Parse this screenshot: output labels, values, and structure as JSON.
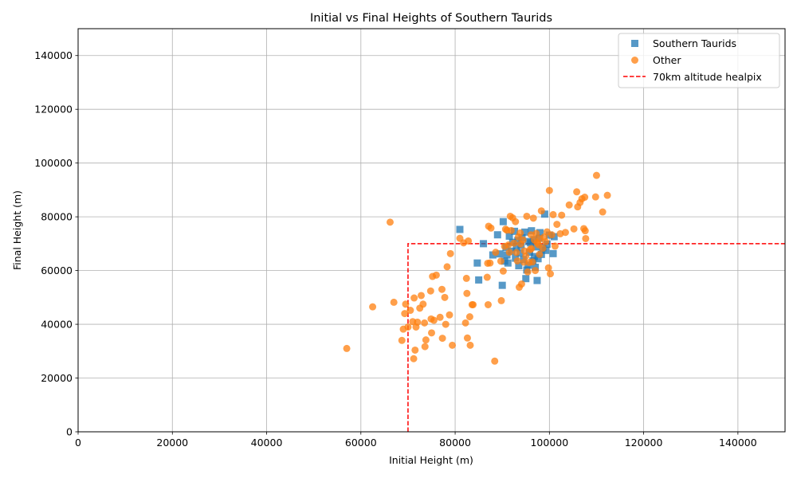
{
  "chart_data": {
    "type": "scatter",
    "title": "Initial vs Final Heights of Southern Taurids",
    "xlabel": "Initial Height (m)",
    "ylabel": "Final Height (m)",
    "xlim": [
      0,
      150000
    ],
    "ylim": [
      0,
      150000
    ],
    "xticks": [
      "0",
      "20000",
      "40000",
      "60000",
      "80000",
      "100000",
      "120000",
      "140000"
    ],
    "yticks": [
      "0",
      "20000",
      "40000",
      "60000",
      "80000",
      "100000",
      "120000",
      "140000"
    ],
    "grid": true,
    "legend_position": "top-right",
    "series": [
      {
        "name": "Southern Taurids",
        "marker": "square",
        "color": "#1f77b4",
        "points": [
          [
            81000,
            75300
          ],
          [
            86000,
            70000
          ],
          [
            85000,
            56500
          ],
          [
            84700,
            62800
          ],
          [
            88000,
            65800
          ],
          [
            89000,
            73300
          ],
          [
            89500,
            66200
          ],
          [
            90200,
            78200
          ],
          [
            90000,
            54500
          ],
          [
            90500,
            63500
          ],
          [
            91000,
            65800
          ],
          [
            91200,
            62800
          ],
          [
            91500,
            72800
          ],
          [
            92000,
            67200
          ],
          [
            92200,
            70500
          ],
          [
            92800,
            64600
          ],
          [
            93000,
            68500
          ],
          [
            93300,
            71200
          ],
          [
            93500,
            61800
          ],
          [
            93800,
            66600
          ],
          [
            94000,
            69400
          ],
          [
            94500,
            64100
          ],
          [
            94800,
            74300
          ],
          [
            95000,
            57000
          ],
          [
            95200,
            60200
          ],
          [
            95500,
            62000
          ],
          [
            95800,
            66800
          ],
          [
            96000,
            70300
          ],
          [
            96200,
            74800
          ],
          [
            96500,
            63600
          ],
          [
            96800,
            65200
          ],
          [
            97000,
            61200
          ],
          [
            97200,
            68800
          ],
          [
            97400,
            56300
          ],
          [
            97600,
            64400
          ],
          [
            97800,
            72000
          ],
          [
            98000,
            74100
          ],
          [
            98300,
            66000
          ],
          [
            98600,
            68500
          ],
          [
            99000,
            81000
          ],
          [
            99200,
            67500
          ],
          [
            99500,
            69800
          ],
          [
            100000,
            73200
          ],
          [
            100800,
            66300
          ],
          [
            101000,
            72600
          ],
          [
            95600,
            70800
          ],
          [
            92600,
            74600
          ],
          [
            94200,
            72200
          ],
          [
            96700,
            71500
          ],
          [
            90800,
            68600
          ]
        ]
      },
      {
        "name": "Other",
        "marker": "circle",
        "color": "#ff7f0e",
        "points": [
          [
            57000,
            31000
          ],
          [
            62500,
            46500
          ],
          [
            66200,
            78000
          ],
          [
            67000,
            48200
          ],
          [
            68700,
            34000
          ],
          [
            69000,
            38200
          ],
          [
            69300,
            44000
          ],
          [
            69500,
            47500
          ],
          [
            70000,
            39000
          ],
          [
            70500,
            45200
          ],
          [
            71000,
            41000
          ],
          [
            71200,
            27200
          ],
          [
            71300,
            49800
          ],
          [
            71500,
            30400
          ],
          [
            71700,
            39000
          ],
          [
            72000,
            40800
          ],
          [
            72500,
            46000
          ],
          [
            72800,
            50700
          ],
          [
            73200,
            47500
          ],
          [
            73500,
            40500
          ],
          [
            73600,
            31700
          ],
          [
            73800,
            34200
          ],
          [
            74800,
            52400
          ],
          [
            74900,
            42000
          ],
          [
            75000,
            36800
          ],
          [
            75200,
            57800
          ],
          [
            75500,
            41500
          ],
          [
            76000,
            58300
          ],
          [
            76800,
            42600
          ],
          [
            77200,
            53000
          ],
          [
            77300,
            34800
          ],
          [
            77800,
            50000
          ],
          [
            78000,
            40000
          ],
          [
            78300,
            61400
          ],
          [
            78800,
            43500
          ],
          [
            79000,
            66300
          ],
          [
            79400,
            32200
          ],
          [
            81000,
            72000
          ],
          [
            81800,
            70300
          ],
          [
            82200,
            40500
          ],
          [
            82400,
            57100
          ],
          [
            82500,
            51500
          ],
          [
            82600,
            34900
          ],
          [
            82800,
            71000
          ],
          [
            83100,
            42800
          ],
          [
            83200,
            32200
          ],
          [
            83600,
            47300
          ],
          [
            83800,
            47300
          ],
          [
            86800,
            57500
          ],
          [
            86900,
            62700
          ],
          [
            87000,
            47300
          ],
          [
            87100,
            76500
          ],
          [
            87400,
            62800
          ],
          [
            87600,
            75800
          ],
          [
            88400,
            26300
          ],
          [
            88600,
            66800
          ],
          [
            89700,
            63500
          ],
          [
            89800,
            48800
          ],
          [
            90200,
            59800
          ],
          [
            90500,
            69000
          ],
          [
            90700,
            75400
          ],
          [
            91000,
            75000
          ],
          [
            91500,
            66800
          ],
          [
            91700,
            80200
          ],
          [
            91900,
            74900
          ],
          [
            92200,
            79600
          ],
          [
            92500,
            70200
          ],
          [
            92800,
            78200
          ],
          [
            93000,
            66700
          ],
          [
            93200,
            63600
          ],
          [
            93400,
            72500
          ],
          [
            93600,
            53800
          ],
          [
            93900,
            69900
          ],
          [
            94100,
            55000
          ],
          [
            94400,
            71400
          ],
          [
            94700,
            67300
          ],
          [
            95000,
            65400
          ],
          [
            95200,
            80200
          ],
          [
            95400,
            59500
          ],
          [
            95700,
            63000
          ],
          [
            95900,
            67800
          ],
          [
            96100,
            73300
          ],
          [
            96400,
            63200
          ],
          [
            96600,
            79500
          ],
          [
            96800,
            71400
          ],
          [
            97000,
            60000
          ],
          [
            97200,
            73800
          ],
          [
            97400,
            70300
          ],
          [
            97700,
            69600
          ],
          [
            98000,
            71900
          ],
          [
            98300,
            82200
          ],
          [
            98600,
            68300
          ],
          [
            98900,
            72500
          ],
          [
            99200,
            70700
          ],
          [
            99500,
            74400
          ],
          [
            99800,
            61000
          ],
          [
            100000,
            89800
          ],
          [
            100200,
            58800
          ],
          [
            100500,
            73300
          ],
          [
            100800,
            80800
          ],
          [
            101200,
            69100
          ],
          [
            101600,
            77200
          ],
          [
            102300,
            73700
          ],
          [
            102600,
            80600
          ],
          [
            103400,
            74200
          ],
          [
            104200,
            84400
          ],
          [
            105200,
            75500
          ],
          [
            105800,
            89300
          ],
          [
            106000,
            83700
          ],
          [
            106500,
            85300
          ],
          [
            106900,
            86700
          ],
          [
            107300,
            75600
          ],
          [
            107500,
            87300
          ],
          [
            107600,
            74800
          ],
          [
            107700,
            71900
          ],
          [
            109800,
            87400
          ],
          [
            110000,
            95400
          ],
          [
            111300,
            81800
          ],
          [
            112300,
            88000
          ],
          [
            91300,
            69500
          ],
          [
            94600,
            63100
          ],
          [
            97900,
            66000
          ],
          [
            93800,
            74000
          ],
          [
            96200,
            68200
          ]
        ]
      }
    ],
    "reference_line": {
      "name": "70km altitude healpix",
      "color": "#ff0000",
      "style": "dashed",
      "x": 70000,
      "y": 70000
    }
  }
}
